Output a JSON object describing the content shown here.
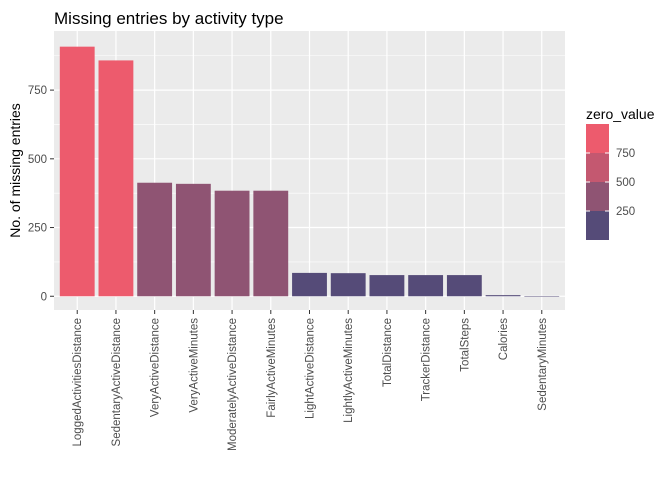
{
  "chart_data": {
    "type": "bar",
    "title": "Missing entries by activity type",
    "xlabel": "",
    "ylabel": "No. of missing entries",
    "categories": [
      "LoggedActivitiesDistance",
      "SedentaryActiveDistance",
      "VeryActiveDistance",
      "VeryActiveMinutes",
      "ModeratelyActiveDistance",
      "FairlyActiveMinutes",
      "LightActiveDistance",
      "LightlyActiveMinutes",
      "TotalDistance",
      "TrackerDistance",
      "TotalSteps",
      "Calories",
      "SedentaryMinutes"
    ],
    "values": [
      908,
      858,
      413,
      409,
      384,
      384,
      85,
      84,
      77,
      77,
      77,
      4,
      1
    ],
    "ylim": [
      -50,
      965
    ],
    "yticks": [
      0,
      250,
      500,
      750
    ],
    "grid": true,
    "legend": {
      "title": "zero_value",
      "placement": "right",
      "type": "binned-fill",
      "breaks": [
        "750",
        "500",
        "250"
      ],
      "colors": [
        "#ed5b6d",
        "#c45870",
        "#8f5473",
        "#554b78"
      ],
      "bar_color_rule": [
        {
          "min": 750,
          "color": "#ed5b6d"
        },
        {
          "min": 500,
          "color": "#c45870"
        },
        {
          "min": 250,
          "color": "#8f5473"
        },
        {
          "min": 0,
          "color": "#554b78"
        }
      ]
    },
    "panel_background": "#ebebeb",
    "grid_color": "#ffffff"
  }
}
